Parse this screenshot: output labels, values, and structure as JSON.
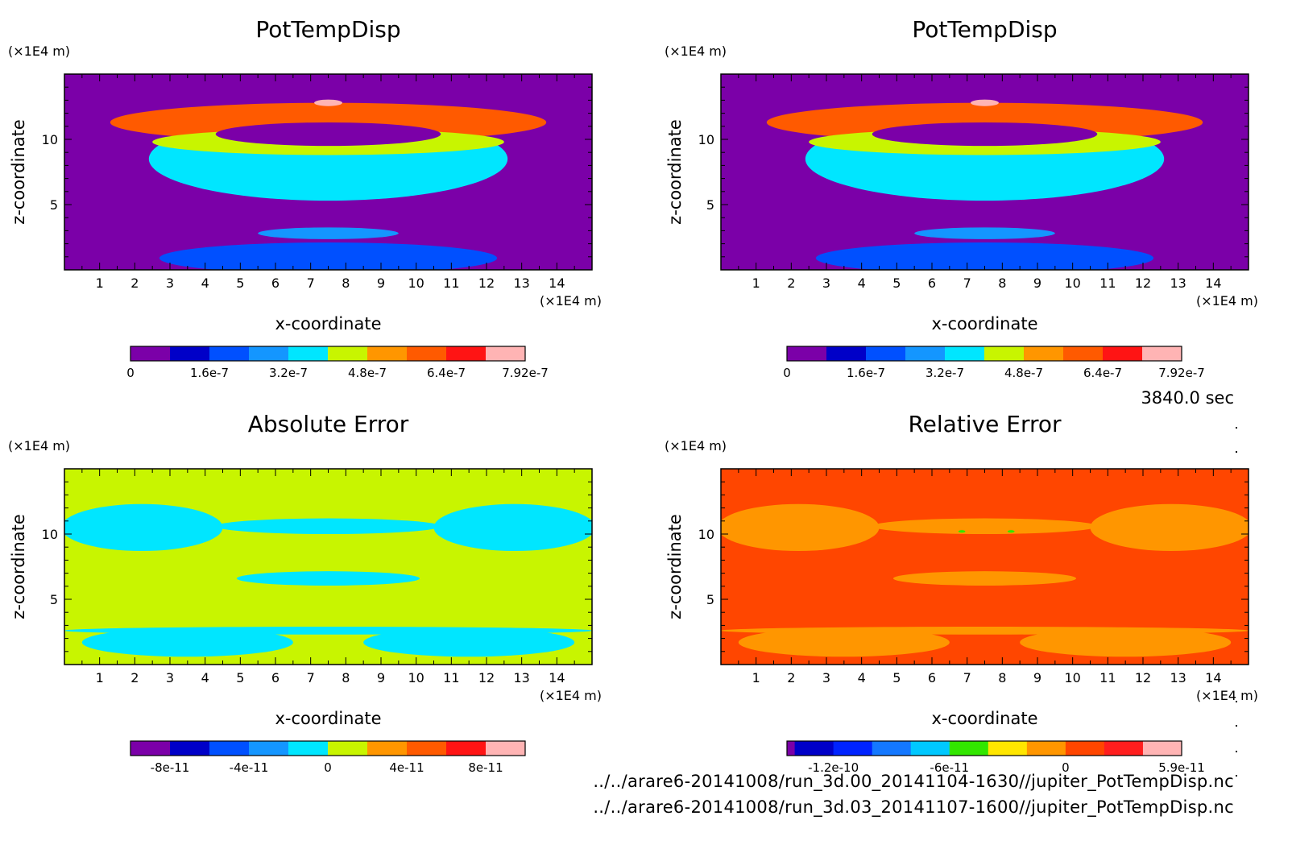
{
  "time_label": "3840.0 sec",
  "files": [
    "../../arare6-20141008/run_3d.00_20141104-1630//jupiter_PotTempDisp.nc",
    "../../arare6-20141008/run_3d.03_20141107-1600//jupiter_PotTempDisp.nc"
  ],
  "chart_data": [
    {
      "type": "heatmap",
      "title": "PotTempDisp",
      "xlabel": "x-coordinate",
      "ylabel": "z-coordinate",
      "x_unit": "(×1E4 m)",
      "y_unit": "(×1E4 m)",
      "xlim": [
        0,
        15
      ],
      "ylim": [
        0,
        15
      ],
      "x_ticks": [
        1,
        2,
        3,
        4,
        5,
        6,
        7,
        8,
        9,
        10,
        11,
        12,
        13,
        14
      ],
      "y_ticks": [
        5,
        10
      ],
      "background_color": "#7b00a8",
      "colorbar": {
        "colors": [
          "#7b00a8",
          "#0000c8",
          "#0050ff",
          "#1496ff",
          "#00e6ff",
          "#c8f500",
          "#ff9600",
          "#ff5a00",
          "#ff1414",
          "#ffb4b4"
        ],
        "labels": [
          "0",
          "1.6e-7",
          "3.2e-7",
          "4.8e-7",
          "6.4e-7",
          "7.92e-7"
        ],
        "label_slots": [
          0,
          2,
          4,
          6,
          8,
          10
        ]
      },
      "regions": [
        {
          "color": "#00e6ff",
          "cx": 7.5,
          "cy": 8.5,
          "rx": 5.1,
          "ry": 3.2
        },
        {
          "color": "#ff5a00",
          "cx": 7.5,
          "cy": 11.3,
          "rx": 6.2,
          "ry": 1.5
        },
        {
          "color": "#c8f500",
          "cx": 7.5,
          "cy": 9.8,
          "rx": 5.0,
          "ry": 1.0
        },
        {
          "color": "#7b00a8",
          "cx": 7.5,
          "cy": 10.4,
          "rx": 3.2,
          "ry": 0.9
        },
        {
          "color": "#00e6ff",
          "cx": 7.5,
          "cy": 6.0,
          "rx": 1.2,
          "ry": 0.35
        },
        {
          "color": "#1496ff",
          "cx": 7.5,
          "cy": 2.8,
          "rx": 2.0,
          "ry": 0.45
        },
        {
          "color": "#0050ff",
          "cx": 7.5,
          "cy": 0.9,
          "rx": 4.8,
          "ry": 1.2
        },
        {
          "color": "#ffb4b4",
          "cx": 7.5,
          "cy": 12.8,
          "rx": 0.4,
          "ry": 0.25
        }
      ]
    },
    {
      "type": "heatmap",
      "title": "PotTempDisp",
      "xlabel": "x-coordinate",
      "ylabel": "z-coordinate",
      "x_unit": "(×1E4 m)",
      "y_unit": "(×1E4 m)",
      "xlim": [
        0,
        15
      ],
      "ylim": [
        0,
        15
      ],
      "x_ticks": [
        1,
        2,
        3,
        4,
        5,
        6,
        7,
        8,
        9,
        10,
        11,
        12,
        13,
        14
      ],
      "y_ticks": [
        5,
        10
      ],
      "background_color": "#7b00a8",
      "colorbar": {
        "colors": [
          "#7b00a8",
          "#0000c8",
          "#0050ff",
          "#1496ff",
          "#00e6ff",
          "#c8f500",
          "#ff9600",
          "#ff5a00",
          "#ff1414",
          "#ffb4b4"
        ],
        "labels": [
          "0",
          "1.6e-7",
          "3.2e-7",
          "4.8e-7",
          "6.4e-7",
          "7.92e-7"
        ],
        "label_slots": [
          0,
          2,
          4,
          6,
          8,
          10
        ]
      },
      "regions": [
        {
          "color": "#00e6ff",
          "cx": 7.5,
          "cy": 8.5,
          "rx": 5.1,
          "ry": 3.2
        },
        {
          "color": "#ff5a00",
          "cx": 7.5,
          "cy": 11.3,
          "rx": 6.2,
          "ry": 1.5
        },
        {
          "color": "#c8f500",
          "cx": 7.5,
          "cy": 9.8,
          "rx": 5.0,
          "ry": 1.0
        },
        {
          "color": "#7b00a8",
          "cx": 7.5,
          "cy": 10.4,
          "rx": 3.2,
          "ry": 0.9
        },
        {
          "color": "#00e6ff",
          "cx": 7.5,
          "cy": 6.0,
          "rx": 1.2,
          "ry": 0.35
        },
        {
          "color": "#1496ff",
          "cx": 7.5,
          "cy": 2.8,
          "rx": 2.0,
          "ry": 0.45
        },
        {
          "color": "#0050ff",
          "cx": 7.5,
          "cy": 0.9,
          "rx": 4.8,
          "ry": 1.2
        },
        {
          "color": "#ffb4b4",
          "cx": 7.5,
          "cy": 12.8,
          "rx": 0.4,
          "ry": 0.25
        }
      ]
    },
    {
      "type": "heatmap",
      "title": "Absolute Error",
      "xlabel": "x-coordinate",
      "ylabel": "z-coordinate",
      "x_unit": "(×1E4 m)",
      "y_unit": "(×1E4 m)",
      "xlim": [
        0,
        15
      ],
      "ylim": [
        0,
        15
      ],
      "x_ticks": [
        1,
        2,
        3,
        4,
        5,
        6,
        7,
        8,
        9,
        10,
        11,
        12,
        13,
        14
      ],
      "y_ticks": [
        5,
        10
      ],
      "background_color": "#c8f500",
      "colorbar": {
        "colors": [
          "#7b00a8",
          "#0000c8",
          "#0050ff",
          "#1496ff",
          "#00e6ff",
          "#c8f500",
          "#ff9600",
          "#ff5a00",
          "#ff1414",
          "#ffb4b4"
        ],
        "labels": [
          "-8e-11",
          "-4e-11",
          "0",
          "4e-11",
          "8e-11"
        ],
        "label_slots": [
          1,
          3,
          5,
          7,
          9
        ]
      },
      "regions": [
        {
          "color": "#00e6ff",
          "cx": 2.2,
          "cy": 10.5,
          "rx": 2.3,
          "ry": 1.8
        },
        {
          "color": "#00e6ff",
          "cx": 12.8,
          "cy": 10.5,
          "rx": 2.3,
          "ry": 1.8
        },
        {
          "color": "#00e6ff",
          "cx": 7.5,
          "cy": 10.6,
          "rx": 3.2,
          "ry": 0.6
        },
        {
          "color": "#00e6ff",
          "cx": 7.5,
          "cy": 6.6,
          "rx": 2.6,
          "ry": 0.55
        },
        {
          "color": "#00e6ff",
          "cx": 3.5,
          "cy": 1.7,
          "rx": 3.0,
          "ry": 1.1
        },
        {
          "color": "#00e6ff",
          "cx": 11.5,
          "cy": 1.7,
          "rx": 3.0,
          "ry": 1.1
        },
        {
          "color": "#00e6ff",
          "cx": 7.5,
          "cy": 2.6,
          "rx": 7.5,
          "ry": 0.3
        }
      ]
    },
    {
      "type": "heatmap",
      "title": "Relative Error",
      "xlabel": "x-coordinate",
      "ylabel": "z-coordinate",
      "x_unit": "(×1E4 m)",
      "y_unit": "(×1E4 m)",
      "xlim": [
        0,
        15
      ],
      "ylim": [
        0,
        15
      ],
      "x_ticks": [
        1,
        2,
        3,
        4,
        5,
        6,
        7,
        8,
        9,
        10,
        11,
        12,
        13,
        14
      ],
      "y_ticks": [
        5,
        10
      ],
      "background_color": "#ff4600",
      "colorbar": {
        "colors": [
          "#7b00a8",
          "#0000c8",
          "#0023ff",
          "#1478ff",
          "#00c8ff",
          "#32e600",
          "#ffe600",
          "#ff9600",
          "#ff4600",
          "#ff1e1e",
          "#ffb4b4"
        ],
        "widths": [
          0.2,
          1,
          1,
          1,
          1,
          1,
          1,
          1,
          1,
          1,
          1
        ],
        "labels": [
          "-1.2e-10",
          "-6e-11",
          "0",
          "5.9e-11"
        ],
        "label_slots": [
          1.2,
          4.2,
          7.2,
          10.2
        ]
      },
      "regions": [
        {
          "color": "#ff9600",
          "cx": 2.2,
          "cy": 10.5,
          "rx": 2.3,
          "ry": 1.8
        },
        {
          "color": "#ff9600",
          "cx": 12.8,
          "cy": 10.5,
          "rx": 2.3,
          "ry": 1.8
        },
        {
          "color": "#ff9600",
          "cx": 7.5,
          "cy": 10.6,
          "rx": 3.2,
          "ry": 0.6
        },
        {
          "color": "#ff9600",
          "cx": 7.5,
          "cy": 6.6,
          "rx": 2.6,
          "ry": 0.55
        },
        {
          "color": "#ff9600",
          "cx": 3.5,
          "cy": 1.7,
          "rx": 3.0,
          "ry": 1.1
        },
        {
          "color": "#ff9600",
          "cx": 11.5,
          "cy": 1.7,
          "rx": 3.0,
          "ry": 1.1
        },
        {
          "color": "#ff9600",
          "cx": 7.5,
          "cy": 2.6,
          "rx": 7.5,
          "ry": 0.3
        },
        {
          "color": "#32e600",
          "cx": 6.85,
          "cy": 10.2,
          "rx": 0.1,
          "ry": 0.1
        },
        {
          "color": "#32e600",
          "cx": 8.25,
          "cy": 10.2,
          "rx": 0.1,
          "ry": 0.1
        }
      ]
    }
  ]
}
